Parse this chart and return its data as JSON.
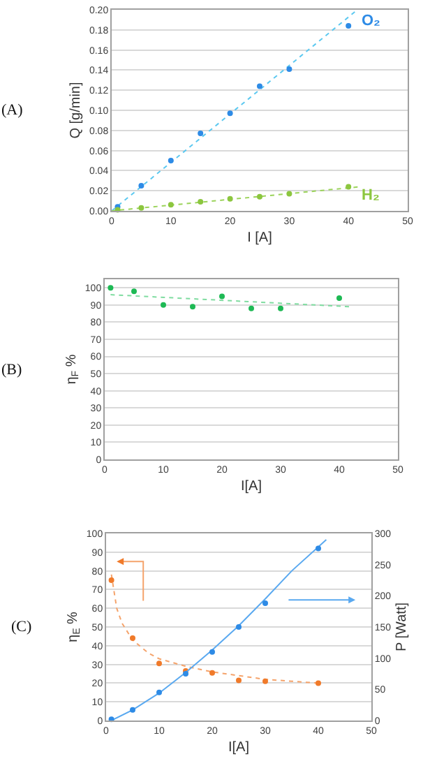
{
  "chart_data": [
    {
      "type": "scatter",
      "annotations": [
        "(A)"
      ],
      "xlabel": "I [A]",
      "ylabel": "Q [g/min]",
      "xlim": [
        0,
        50
      ],
      "xticks": [
        0,
        10,
        20,
        30,
        40,
        50
      ],
      "ylim": [
        0,
        0.2
      ],
      "yticks": [
        {
          "value": 0,
          "label": "0.00"
        },
        {
          "value": 0.02,
          "label": "0.02"
        },
        {
          "value": 0.04,
          "label": "0.04"
        },
        {
          "value": 0.06,
          "label": "0.06"
        },
        {
          "value": 0.08,
          "label": "0.08"
        },
        {
          "value": 0.1,
          "label": "0.10"
        },
        {
          "value": 0.12,
          "label": "0.12"
        },
        {
          "value": 0.14,
          "label": "0.14"
        },
        {
          "value": 0.16,
          "label": "0.16"
        },
        {
          "value": 0.18,
          "label": "0.18"
        },
        {
          "value": 0.2,
          "label": "0.20"
        }
      ],
      "grid": "y",
      "marker": "circle",
      "x": [
        1,
        5,
        10,
        15,
        20,
        25,
        30,
        40
      ],
      "series": [
        {
          "type": "line",
          "color": "#5bc8f0",
          "line_style": "dotted",
          "marker": "none",
          "x": [
            0,
            41.5
          ],
          "values": [
            0,
            0.2
          ]
        },
        {
          "type": "line",
          "color": "#9bd35a",
          "line_style": "dotted",
          "marker": "none",
          "x": [
            0,
            42
          ],
          "values": [
            0,
            0.024
          ]
        },
        {
          "name": "O₂",
          "color": "#2e8be6",
          "values": [
            0.004,
            0.025,
            0.05,
            0.077,
            0.097,
            0.124,
            0.141,
            0.184
          ]
        },
        {
          "name": "H₂",
          "color": "#8cc63f",
          "values": [
            0.001,
            0.003,
            0.006,
            0.009,
            0.012,
            0.014,
            0.017,
            0.024
          ]
        }
      ]
    },
    {
      "type": "scatter",
      "annotations": [
        "(B)"
      ],
      "xlabel": "I[A]",
      "ylabel": "η$_{F}$ %",
      "xlim": [
        0,
        50
      ],
      "xticks": [
        0,
        10,
        20,
        30,
        40,
        50
      ],
      "ylim": [
        0,
        105
      ],
      "yticks": [
        0,
        10,
        20,
        30,
        40,
        50,
        60,
        70,
        80,
        90,
        100
      ],
      "grid": "y",
      "marker": "circle",
      "x": [
        1,
        5,
        10,
        15,
        20,
        25,
        30,
        40
      ],
      "series": [
        {
          "type": "line",
          "color": "#7fdca0",
          "line_style": "dotted",
          "marker": "none",
          "x": [
            1,
            42
          ],
          "values": [
            96,
            89
          ]
        },
        {
          "color": "#1db954",
          "values": [
            100,
            98,
            90,
            89,
            95,
            88,
            88,
            94
          ]
        }
      ]
    },
    {
      "type": "scatter",
      "annotations": [
        "(C)"
      ],
      "xlabel": "I[A]",
      "ylabel": "η$_{E}$ %",
      "y2label": "P [Watt]",
      "xlim": [
        0,
        50
      ],
      "xticks": [
        0,
        10,
        20,
        30,
        40,
        50
      ],
      "ylim": [
        0,
        100
      ],
      "yticks": [
        0,
        10,
        20,
        30,
        40,
        50,
        60,
        70,
        80,
        90,
        100
      ],
      "y2lim": [
        0,
        300
      ],
      "y2ticks": [
        0,
        50,
        100,
        150,
        200,
        250,
        300
      ],
      "grid": "y",
      "marker": "circle",
      "x": [
        1,
        5,
        10,
        15,
        20,
        25,
        30,
        40
      ],
      "series": [
        {
          "type": "line",
          "color": "#f5a36b",
          "line_style": "dotted",
          "marker": "none",
          "x": [
            1,
            2,
            3,
            5,
            8,
            10,
            15,
            20,
            25,
            30,
            35,
            40
          ],
          "values": [
            78,
            60,
            52,
            43,
            36,
            33,
            29,
            26,
            24,
            22,
            21,
            20
          ]
        },
        {
          "type": "line",
          "color": "#5aa9f0",
          "line_style": "solid",
          "marker": "none",
          "axis": "y2",
          "x": [
            1,
            5,
            10,
            15,
            20,
            25,
            30,
            35,
            41.5
          ],
          "values": [
            0,
            17,
            44,
            77,
            113,
            152,
            195,
            240,
            290
          ]
        },
        {
          "color": "#f07a2a",
          "values": [
            75,
            44,
            30.5,
            26.5,
            25.5,
            21.5,
            21,
            20
          ]
        },
        {
          "color": "#2e8be6",
          "axis": "y2",
          "values": [
            2,
            17,
            45,
            75,
            110,
            150,
            188,
            276
          ]
        }
      ]
    }
  ]
}
